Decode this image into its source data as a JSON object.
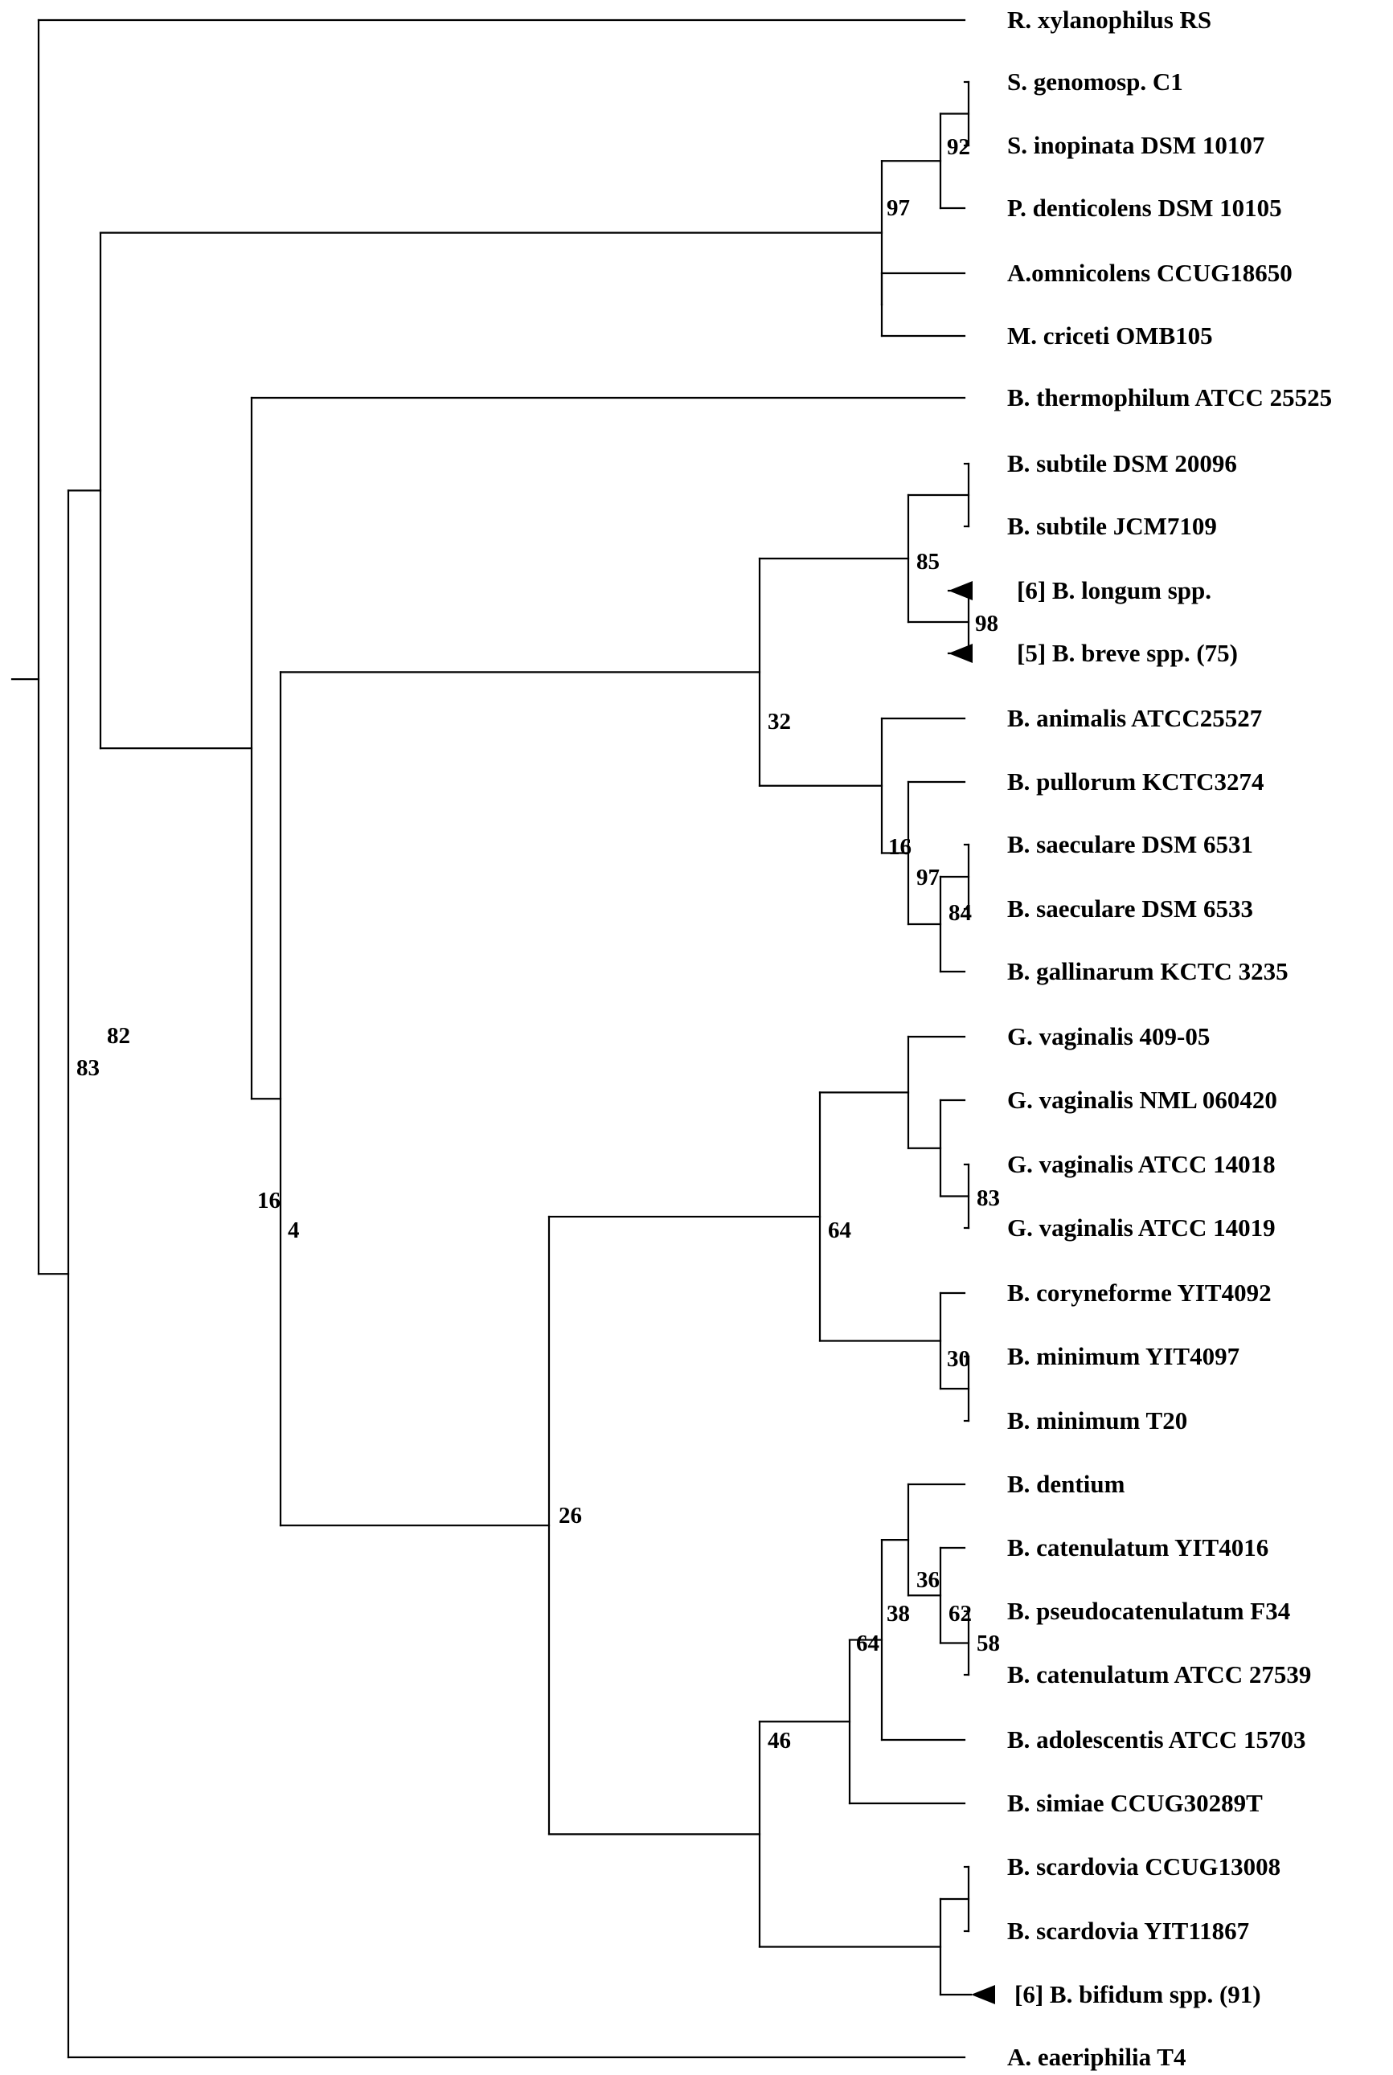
{
  "taxa": [
    "R. xylanophilus RS",
    "S. genomosp. C1",
    "S. inopinata DSM 10107",
    "P. denticolens DSM 10105",
    "A.omnicolens CCUG18650",
    "M. criceti OMB105",
    "B. thermophilum ATCC 25525",
    "B. subtile DSM 20096",
    "B. subtile JCM7109",
    "[6] B. longum spp.",
    "[5] B. breve spp. (75)",
    "B. animalis ATCC25527",
    "B. pullorum KCTC3274",
    "B. saeculare DSM 6531",
    "B. saeculare DSM 6533",
    "B. gallinarum KCTC 3235",
    "G. vaginalis 409-05",
    "G. vaginalis NML 060420",
    "G. vaginalis ATCC 14018",
    "G. vaginalis ATCC 14019",
    "B. coryneforme YIT4092",
    "B. minimum YIT4097",
    "B. minimum T20",
    "B. dentium",
    "B. catenulatum YIT4016",
    "B. pseudocatenulatum F34",
    "B. catenulatum ATCC 27539",
    "B. adolescentis ATCC 15703",
    "B. simiae CCUG30289T",
    "B. scardovia CCUG13008",
    "B. scardovia YIT11867",
    "[6] B. bifidum spp. (91)",
    "A. eaeriphilia T4"
  ],
  "collapsed_taxa": [
    "[6] B. longum spp.",
    "[5] B. breve spp. (75)",
    "[6] B. bifidum spp. (91)"
  ],
  "support_values": [
    "92",
    "97",
    "85",
    "98",
    "32",
    "16",
    "97",
    "84",
    "83",
    "30",
    "64",
    "36",
    "62",
    "58",
    "38",
    "64",
    "46",
    "26",
    "4",
    "16",
    "82",
    "83"
  ]
}
